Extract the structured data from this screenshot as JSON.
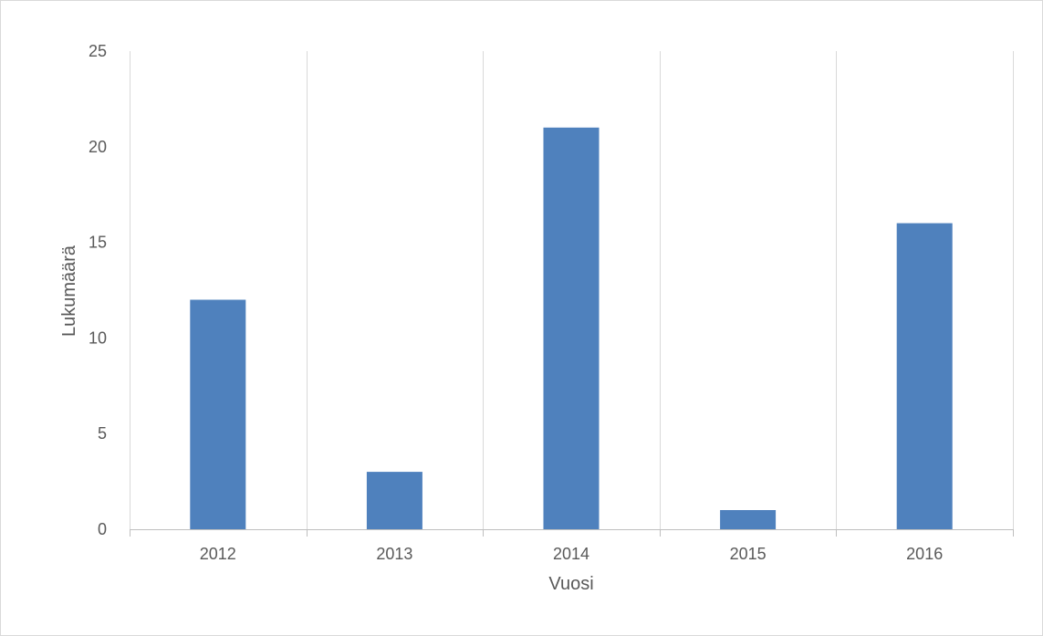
{
  "chart_data": {
    "type": "bar",
    "title": "",
    "xlabel": "Vuosi",
    "ylabel": "Lukumäärä",
    "categories": [
      "2012",
      "2013",
      "2014",
      "2015",
      "2016"
    ],
    "values": [
      12,
      3,
      21,
      1,
      16
    ],
    "ylim": [
      0,
      25
    ],
    "yticks": [
      "0",
      "5",
      "10",
      "15",
      "20",
      "25"
    ],
    "grid": "vertical",
    "legend": "none",
    "colors": {
      "bar": "#4f81bd",
      "grid": "#d9d9d9",
      "axis": "#bfbfbf",
      "text": "#595959"
    }
  }
}
